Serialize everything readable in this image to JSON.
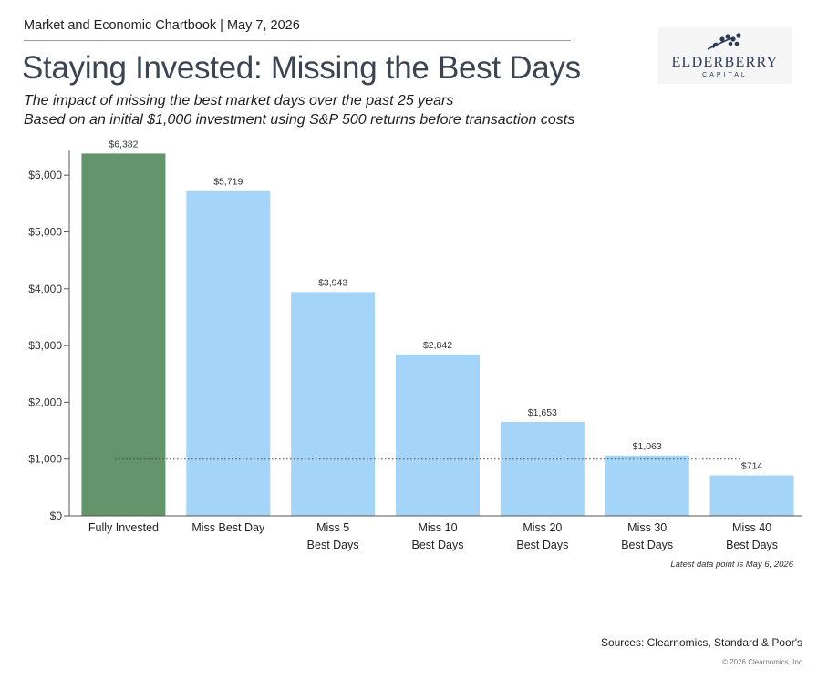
{
  "header": {
    "source_line": "Market and Economic Chartbook | May 7, 2026",
    "title": "Staying Invested: Missing the Best Days",
    "subtitle_1": "The impact of missing the best market days over the past 25 years",
    "subtitle_2": "Based on an initial $1,000 investment using S&P 500 returns before transaction costs"
  },
  "logo": {
    "name": "ELDERBERRY",
    "tagline": "CAPITAL",
    "icon": "elderberry-cluster-icon"
  },
  "chart_data": {
    "type": "bar",
    "title": "",
    "xlabel": "",
    "ylabel": "",
    "categories": [
      "Fully Invested",
      "Miss Best Day",
      "Miss 5\nBest Days",
      "Miss 10\nBest Days",
      "Miss 20\nBest Days",
      "Miss 30\nBest Days",
      "Miss 40\nBest Days"
    ],
    "values": [
      6382,
      5719,
      3943,
      2842,
      1653,
      1063,
      714
    ],
    "value_labels": [
      "$6,382",
      "$5,719",
      "$3,943",
      "$2,842",
      "$1,653",
      "$1,063",
      "$714"
    ],
    "ylim": [
      0,
      6400
    ],
    "yticks": [
      0,
      1000,
      2000,
      3000,
      4000,
      5000,
      6000
    ],
    "ytick_labels": [
      "$0",
      "$1,000",
      "$2,000",
      "$3,000",
      "$4,000",
      "$5,000",
      "$6,000"
    ],
    "reference_line": {
      "value": 1000,
      "style": "dotted"
    },
    "colors": {
      "highlight": "#64946c",
      "default": "#a4d4f7",
      "axis": "#555555"
    },
    "grid": false,
    "legend": "none"
  },
  "footer": {
    "note": "Latest data point is May 6, 2026",
    "sources": "Sources: Clearnomics, Standard & Poor's",
    "copyright": "© 2026 Clearnomics, Inc."
  }
}
